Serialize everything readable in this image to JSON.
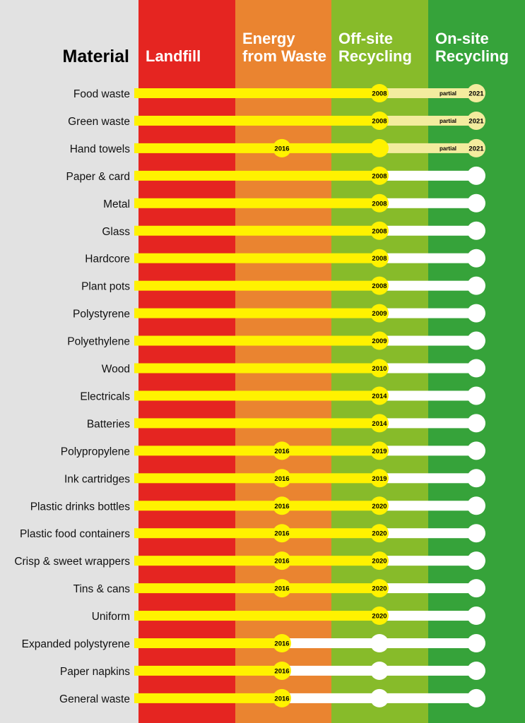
{
  "title": "Material",
  "columns": [
    {
      "label": [
        "Landfill"
      ],
      "color": "#e52521"
    },
    {
      "label": [
        "Energy",
        "from Waste"
      ],
      "color": "#ea8430"
    },
    {
      "label": [
        "Off-site",
        "Recycling"
      ],
      "color": "#87bb2a"
    },
    {
      "label": [
        "On-site",
        "Recycling"
      ],
      "color": "#36a33a"
    }
  ],
  "colors": {
    "background": "#e2e2e2",
    "yellow": "#fff200",
    "white": "#ffffff",
    "partial": "#f3ec9e"
  },
  "partial_label": "partial",
  "rows": [
    {
      "material": "Food waste",
      "energy": null,
      "offsite": "2008",
      "onsite": "partial",
      "onsite_year": "2021"
    },
    {
      "material": "Green waste",
      "energy": null,
      "offsite": "2008",
      "onsite": "partial",
      "onsite_year": "2021"
    },
    {
      "material": "Hand towels",
      "energy": "2016",
      "offsite": "",
      "onsite": "partial",
      "onsite_year": "2021"
    },
    {
      "material": "Paper & card",
      "energy": null,
      "offsite": "2008",
      "onsite": "none",
      "onsite_year": null
    },
    {
      "material": "Metal",
      "energy": null,
      "offsite": "2008",
      "onsite": "none",
      "onsite_year": null
    },
    {
      "material": "Glass",
      "energy": null,
      "offsite": "2008",
      "onsite": "none",
      "onsite_year": null
    },
    {
      "material": "Hardcore",
      "energy": null,
      "offsite": "2008",
      "onsite": "none",
      "onsite_year": null
    },
    {
      "material": "Plant pots",
      "energy": null,
      "offsite": "2008",
      "onsite": "none",
      "onsite_year": null
    },
    {
      "material": "Polystyrene",
      "energy": null,
      "offsite": "2009",
      "onsite": "none",
      "onsite_year": null
    },
    {
      "material": "Polyethylene",
      "energy": null,
      "offsite": "2009",
      "onsite": "none",
      "onsite_year": null
    },
    {
      "material": "Wood",
      "energy": null,
      "offsite": "2010",
      "onsite": "none",
      "onsite_year": null
    },
    {
      "material": "Electricals",
      "energy": null,
      "offsite": "2014",
      "onsite": "none",
      "onsite_year": null
    },
    {
      "material": "Batteries",
      "energy": null,
      "offsite": "2014",
      "onsite": "none",
      "onsite_year": null
    },
    {
      "material": "Polypropylene",
      "energy": "2016",
      "offsite": "2019",
      "onsite": "none",
      "onsite_year": null
    },
    {
      "material": "Ink cartridges",
      "energy": "2016",
      "offsite": "2019",
      "onsite": "none",
      "onsite_year": null
    },
    {
      "material": "Plastic drinks bottles",
      "energy": "2016",
      "offsite": "2020",
      "onsite": "none",
      "onsite_year": null
    },
    {
      "material": "Plastic food containers",
      "energy": "2016",
      "offsite": "2020",
      "onsite": "none",
      "onsite_year": null
    },
    {
      "material": "Crisp & sweet wrappers",
      "energy": "2016",
      "offsite": "2020",
      "onsite": "none",
      "onsite_year": null
    },
    {
      "material": "Tins & cans",
      "energy": "2016",
      "offsite": "2020",
      "onsite": "none",
      "onsite_year": null
    },
    {
      "material": "Uniform",
      "energy": null,
      "offsite": "2020",
      "onsite": "none",
      "onsite_year": null
    },
    {
      "material": "Expanded polystyrene",
      "energy": "2016",
      "offsite": null,
      "onsite": "none",
      "onsite_year": null
    },
    {
      "material": "Paper napkins",
      "energy": "2016",
      "offsite": null,
      "onsite": "none",
      "onsite_year": null
    },
    {
      "material": "General waste",
      "energy": "2016",
      "offsite": null,
      "onsite": "none",
      "onsite_year": null
    }
  ]
}
